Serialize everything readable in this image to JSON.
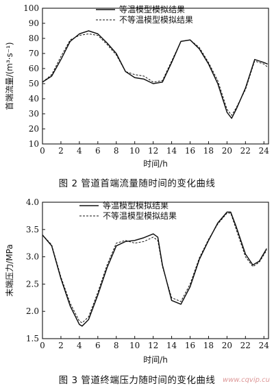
{
  "chart_data": [
    {
      "type": "line",
      "figure_caption": "图 2   管道首端流量随时间的变化曲线",
      "xlabel": "时间/h",
      "ylabel": "首端流量/(m³·s⁻¹)",
      "xlim": [
        0,
        24.5
      ],
      "ylim": [
        10,
        100
      ],
      "xticks": [
        0,
        2,
        4,
        6,
        8,
        10,
        12,
        14,
        16,
        18,
        20,
        22,
        24
      ],
      "yticks": [
        10,
        20,
        30,
        40,
        50,
        60,
        70,
        80,
        90,
        100
      ],
      "legend": {
        "placement": "top-center"
      },
      "grid": false,
      "series": [
        {
          "name": "等温模型模拟结果",
          "style": "solid",
          "x": [
            0,
            1,
            2,
            3,
            4,
            5,
            6,
            7,
            8,
            9,
            10,
            11,
            12,
            13,
            14,
            15,
            16,
            17,
            18,
            19,
            20,
            20.5,
            21,
            22,
            23,
            24,
            24.4
          ],
          "y": [
            51,
            55,
            66,
            78,
            83,
            85,
            83,
            77,
            70,
            58,
            54,
            53,
            50,
            51,
            64,
            78,
            79,
            73,
            63,
            50,
            31,
            27,
            33,
            47,
            66,
            64,
            63
          ]
        },
        {
          "name": "不等温模型模拟结果",
          "style": "dashed",
          "x": [
            0,
            1,
            2,
            3,
            4,
            5,
            6,
            7,
            8,
            9,
            10,
            11,
            12,
            13,
            14,
            15,
            16,
            17,
            18,
            19,
            20,
            20.5,
            21,
            22,
            23,
            24,
            24.4
          ],
          "y": [
            51,
            56,
            68,
            79,
            82,
            83,
            82,
            76,
            69,
            58,
            56,
            55,
            51,
            52,
            65,
            78,
            79,
            74,
            64,
            52,
            33,
            29,
            34,
            46,
            65,
            63,
            61
          ]
        }
      ]
    },
    {
      "type": "line",
      "figure_caption": "图 3   管道终端压力随时间的变化曲线",
      "xlabel": "时间/h",
      "ylabel": "末端压力/MPa",
      "xlim": [
        0,
        24.5
      ],
      "ylim": [
        1.5,
        4.0
      ],
      "xticks": [
        0,
        2,
        4,
        6,
        8,
        10,
        12,
        14,
        16,
        18,
        20,
        22,
        24
      ],
      "yticks": [
        1.5,
        2.0,
        2.5,
        3.0,
        3.5,
        4.0
      ],
      "ytick_labels": [
        "1.5",
        "2.0",
        "2.5",
        "3.0",
        "3.5",
        "4.0"
      ],
      "legend": {
        "placement": "top-center"
      },
      "grid": false,
      "series": [
        {
          "name": "等温模型模拟结果",
          "style": "solid",
          "x": [
            0,
            1,
            2,
            3,
            4,
            4.3,
            5,
            6,
            7,
            8,
            9,
            10,
            11,
            12,
            12.5,
            13,
            14,
            15,
            16,
            17,
            18,
            19,
            20,
            20.4,
            21,
            22,
            22.8,
            23.5,
            24.3
          ],
          "y": [
            3.4,
            3.2,
            2.6,
            2.1,
            1.76,
            1.73,
            1.85,
            2.3,
            2.8,
            3.2,
            3.28,
            3.3,
            3.35,
            3.42,
            3.36,
            2.85,
            2.2,
            2.13,
            2.45,
            2.95,
            3.3,
            3.62,
            3.82,
            3.82,
            3.55,
            3.05,
            2.85,
            2.92,
            3.15
          ]
        },
        {
          "name": "不等温模型模拟结果",
          "style": "dashed",
          "x": [
            0,
            1,
            2,
            3,
            4,
            4.3,
            5,
            6,
            7,
            8,
            9,
            10,
            11,
            12,
            12.5,
            13,
            14,
            15,
            16,
            17,
            18,
            19,
            20,
            20.4,
            21,
            22,
            22.8,
            23.5,
            24.3
          ],
          "y": [
            3.4,
            3.22,
            2.63,
            2.15,
            1.82,
            1.79,
            1.9,
            2.35,
            2.85,
            3.25,
            3.3,
            3.25,
            3.28,
            3.36,
            3.3,
            2.82,
            2.25,
            2.18,
            2.5,
            2.98,
            3.32,
            3.6,
            3.8,
            3.8,
            3.5,
            3.0,
            2.82,
            2.9,
            3.12
          ]
        }
      ]
    }
  ],
  "watermark": "www.cqvip.cu"
}
